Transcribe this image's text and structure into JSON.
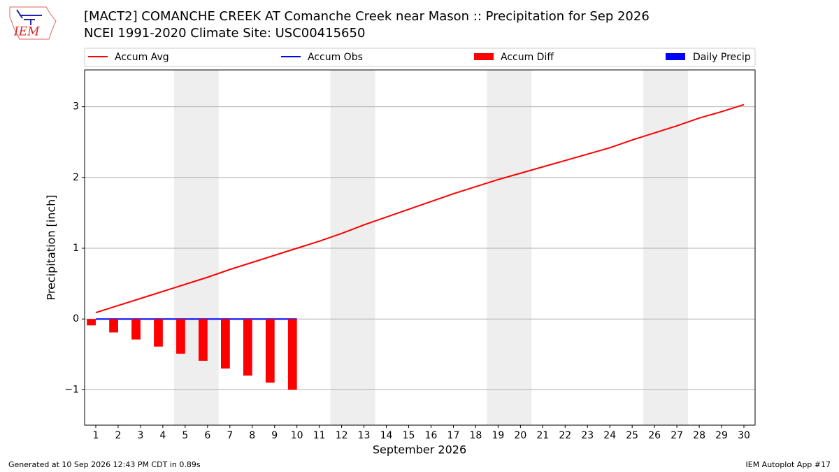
{
  "logo_text": "IEM",
  "footer": {
    "left": "Generated at 10 Sep 2026 12:43 PM CDT in 0.89s",
    "right": "IEM Autoplot App #17"
  },
  "chart_data": {
    "type": "combo",
    "title": "[MACT2] COMANCHE CREEK  AT Comanche Creek near Mason :: Precipitation for Sep 2026",
    "subtitle": "NCEI 1991-2020 Climate Site: USC00415650",
    "xlabel": "September 2026",
    "ylabel": "Precipitation [inch]",
    "x": [
      1,
      2,
      3,
      4,
      5,
      6,
      7,
      8,
      9,
      10,
      11,
      12,
      13,
      14,
      15,
      16,
      17,
      18,
      19,
      20,
      21,
      22,
      23,
      24,
      25,
      26,
      27,
      28,
      29,
      30
    ],
    "xlim": [
      0.5,
      30.5
    ],
    "xticks": [
      1,
      2,
      3,
      4,
      5,
      6,
      7,
      8,
      9,
      10,
      11,
      12,
      13,
      14,
      15,
      16,
      17,
      18,
      19,
      20,
      21,
      22,
      23,
      24,
      25,
      26,
      27,
      28,
      29,
      30
    ],
    "ylim": [
      -1.5,
      3.52
    ],
    "yticks": [
      {
        "value": -1,
        "label": "−1"
      },
      0,
      1,
      2,
      3
    ],
    "grid": true,
    "series": [
      {
        "name": "Accum Avg",
        "type": "line",
        "color": "#ff0000",
        "values": [
          0.09,
          0.19,
          0.29,
          0.39,
          0.49,
          0.59,
          0.7,
          0.8,
          0.9,
          1.0,
          1.1,
          1.21,
          1.33,
          1.44,
          1.55,
          1.66,
          1.77,
          1.87,
          1.97,
          2.06,
          2.15,
          2.24,
          2.33,
          2.42,
          2.53,
          2.63,
          2.73,
          2.84,
          2.93,
          3.03
        ]
      },
      {
        "name": "Accum Obs",
        "type": "line",
        "color": "#0000ff",
        "values": [
          0,
          0,
          0,
          0,
          0,
          0,
          0,
          0,
          0,
          0,
          null,
          null,
          null,
          null,
          null,
          null,
          null,
          null,
          null,
          null,
          null,
          null,
          null,
          null,
          null,
          null,
          null,
          null,
          null,
          null
        ]
      },
      {
        "name": "Accum Diff",
        "type": "bar",
        "color": "#ff0000",
        "values": [
          -0.09,
          -0.19,
          -0.29,
          -0.39,
          -0.49,
          -0.59,
          -0.7,
          -0.8,
          -0.9,
          -1.0,
          null,
          null,
          null,
          null,
          null,
          null,
          null,
          null,
          null,
          null,
          null,
          null,
          null,
          null,
          null,
          null,
          null,
          null,
          null,
          null
        ]
      },
      {
        "name": "Daily Precip",
        "type": "bar",
        "color": "#0000ff",
        "values": [
          0,
          0,
          0,
          0,
          0,
          0,
          0,
          0,
          0,
          0,
          null,
          null,
          null,
          null,
          null,
          null,
          null,
          null,
          null,
          null,
          null,
          null,
          null,
          null,
          null,
          null,
          null,
          null,
          null,
          null
        ]
      }
    ]
  }
}
